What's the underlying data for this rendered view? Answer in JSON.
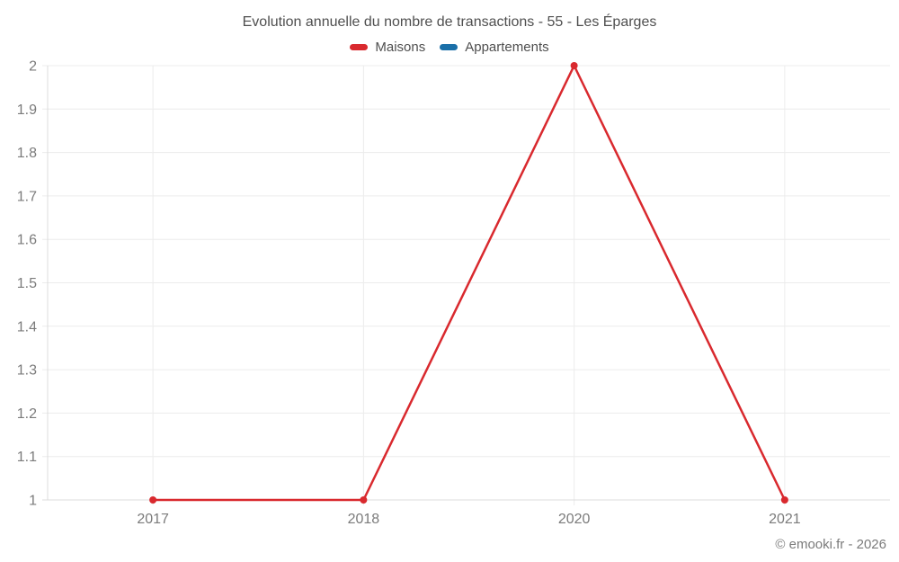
{
  "chart_data": {
    "type": "line",
    "title": "Evolution annuelle du nombre de transactions - 55 - Les Éparges",
    "categories": [
      "2017",
      "2018",
      "2020",
      "2021"
    ],
    "series": [
      {
        "name": "Maisons",
        "color": "#d9292e",
        "values": [
          1,
          1,
          2,
          1
        ]
      },
      {
        "name": "Appartements",
        "color": "#1a6fa8",
        "values": []
      }
    ],
    "ylim": [
      1,
      2
    ],
    "yticks": [
      1,
      1.1,
      1.2,
      1.3,
      1.4,
      1.5,
      1.6,
      1.7,
      1.8,
      1.9,
      2
    ],
    "ytick_labels": [
      "1",
      "1.1",
      "1.2",
      "1.3",
      "1.4",
      "1.5",
      "1.6",
      "1.7",
      "1.8",
      "1.9",
      "2"
    ],
    "grid": true,
    "legend_position": "top",
    "colors": {
      "grid": "#ececec",
      "axis": "#dcdcdc",
      "tick_label": "#7b7b7b",
      "title": "#4f4f4f"
    }
  },
  "footer": {
    "attribution": "© emooki.fr - 2026"
  }
}
